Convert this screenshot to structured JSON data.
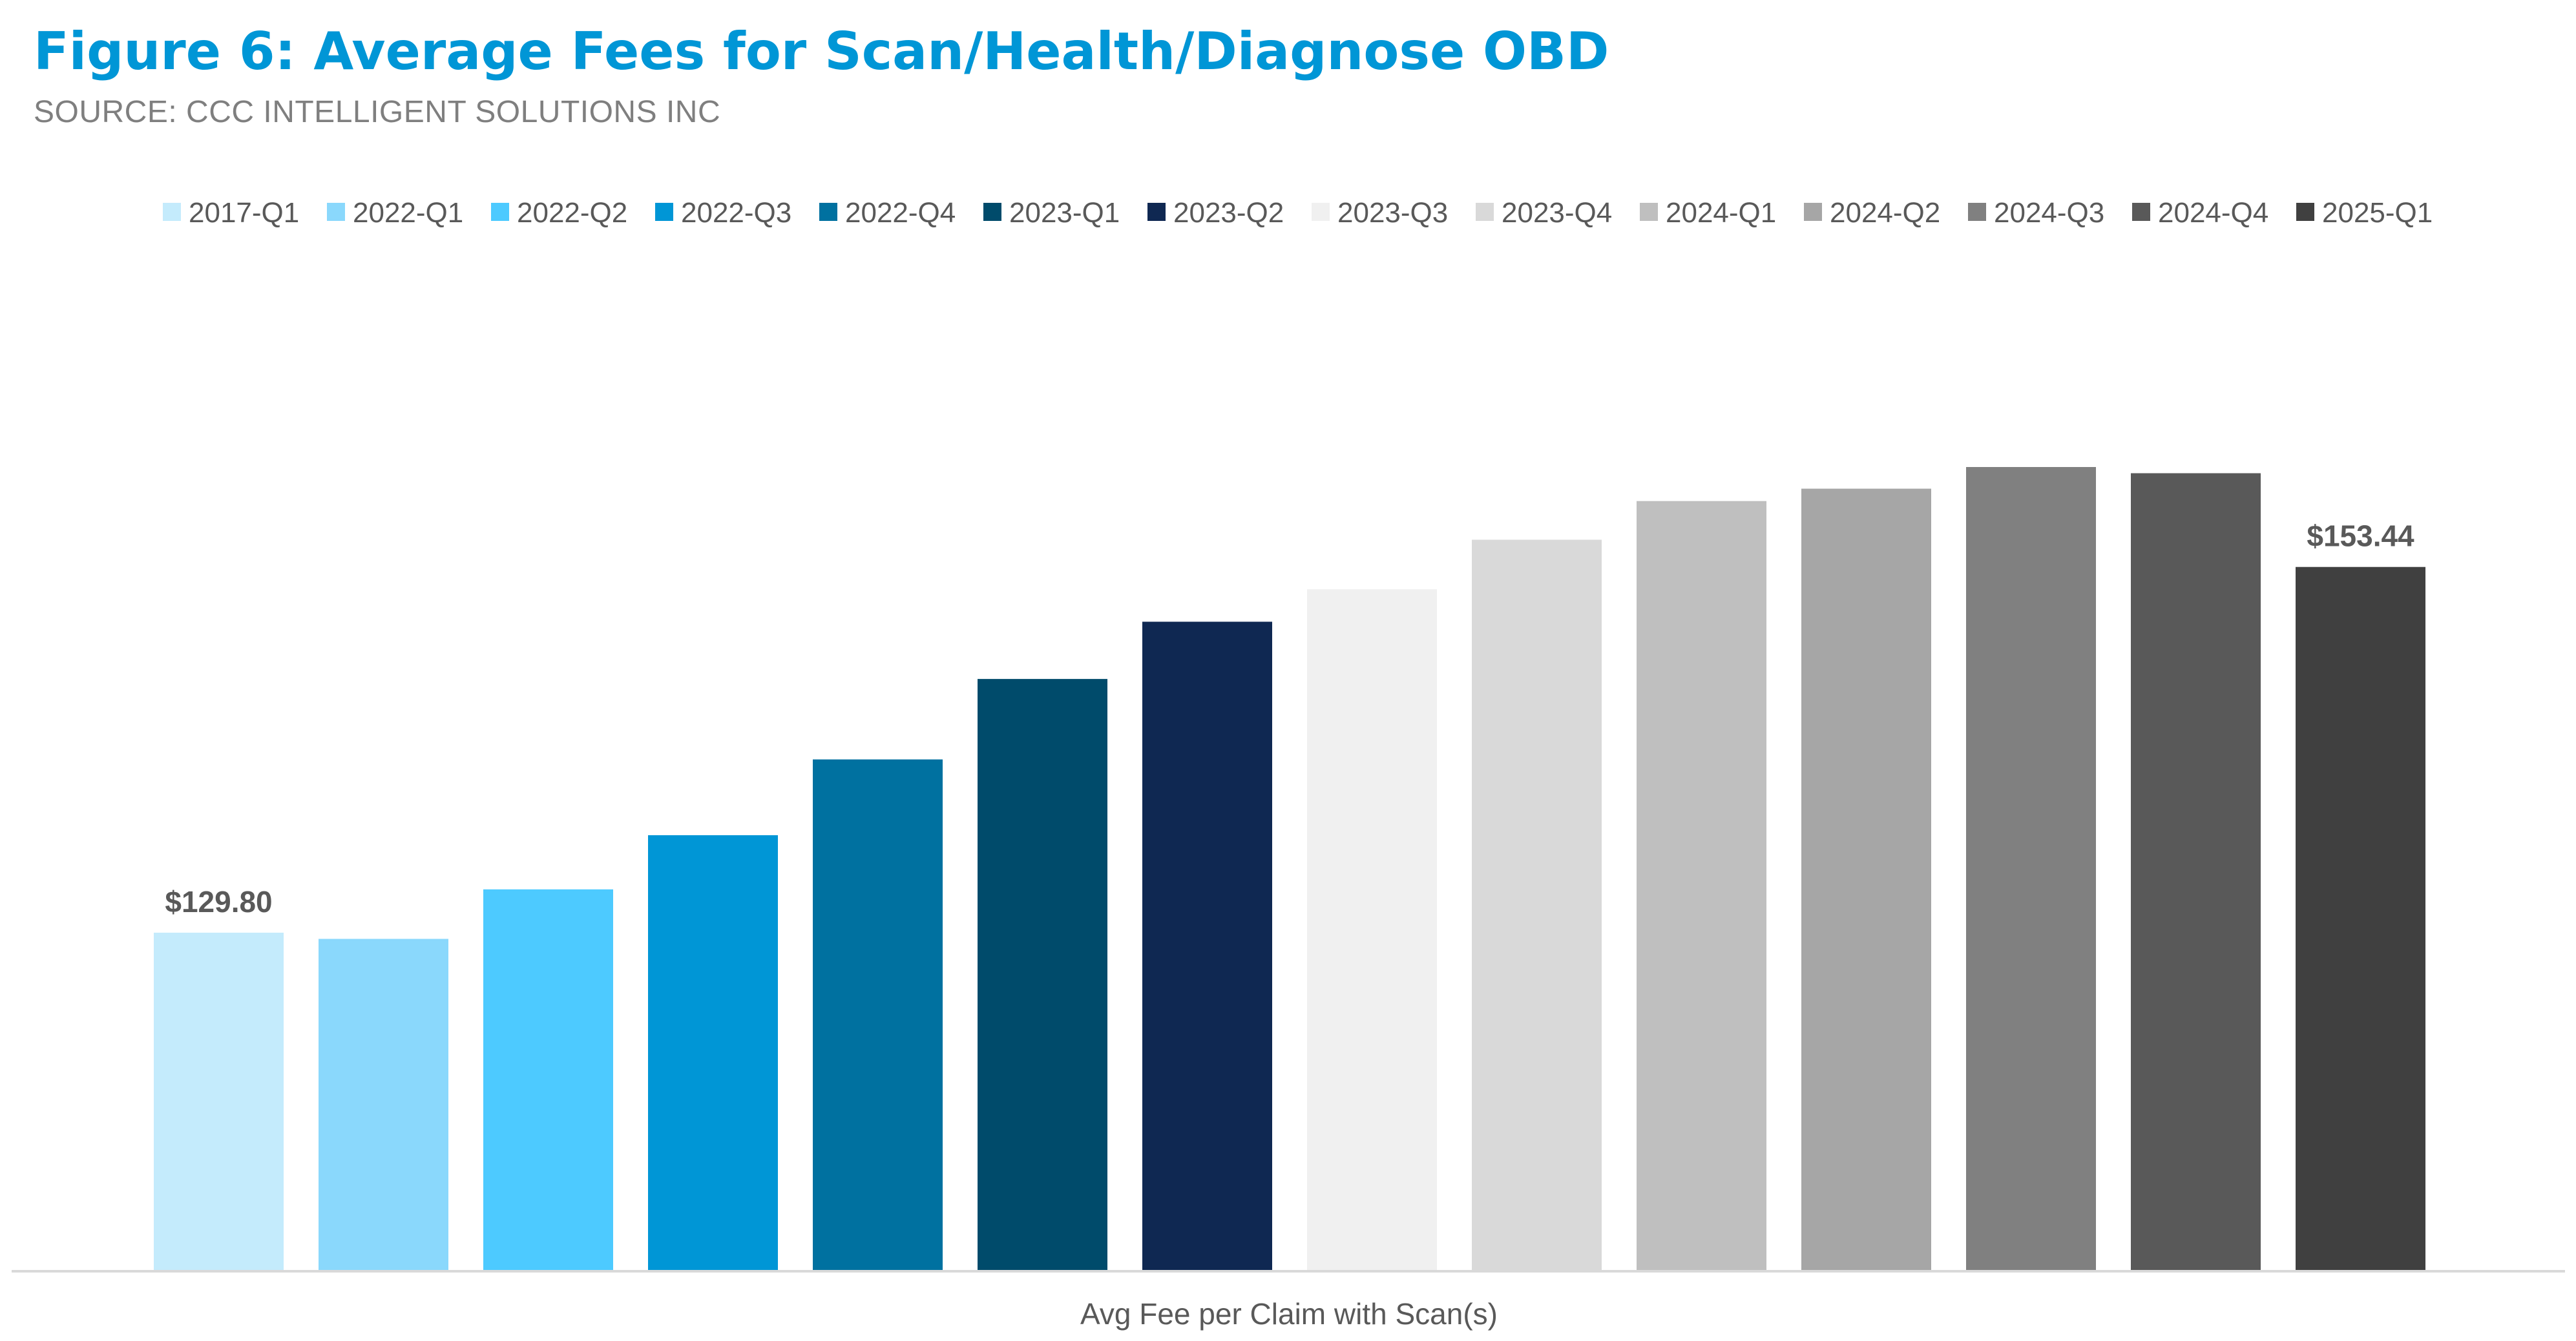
{
  "title": "Figure 6: Average Fees for Scan/Health/Diagnose OBD",
  "subtitle": "SOURCE: CCC INTELLIGENT SOLUTIONS INC",
  "chart_data": {
    "type": "bar",
    "title": "Figure 6: Average Fees for Scan/Health/Diagnose OBD",
    "subtitle": "SOURCE: CCC INTELLIGENT SOLUTIONS INC",
    "xlabel": "Avg Fee per Claim with Scan(s)",
    "ylabel": "",
    "categories": [
      "Avg Fee per Claim with Scan(s)"
    ],
    "series": [
      {
        "name": "2017-Q1",
        "value": 129.8,
        "color": "#c4ebfc"
      },
      {
        "name": "2022-Q1",
        "value": 129.4,
        "color": "#8ad8fc"
      },
      {
        "name": "2022-Q2",
        "value": 132.6,
        "color": "#4dcaff"
      },
      {
        "name": "2022-Q3",
        "value": 136.1,
        "color": "#0096d6"
      },
      {
        "name": "2022-Q4",
        "value": 141.0,
        "color": "#0071a0"
      },
      {
        "name": "2023-Q1",
        "value": 146.2,
        "color": "#004b6b"
      },
      {
        "name": "2023-Q2",
        "value": 149.9,
        "color": "#0f2852"
      },
      {
        "name": "2023-Q3",
        "value": 152.0,
        "color": "#f0f0f0"
      },
      {
        "name": "2023-Q4",
        "value": 155.2,
        "color": "#d9d9d9"
      },
      {
        "name": "2024-Q1",
        "value": 157.7,
        "color": "#bfbfbf"
      },
      {
        "name": "2024-Q2",
        "value": 158.5,
        "color": "#a6a6a6"
      },
      {
        "name": "2024-Q3",
        "value": 159.9,
        "color": "#808080"
      },
      {
        "name": "2024-Q4",
        "value": 159.5,
        "color": "#595959"
      },
      {
        "name": "2025-Q1",
        "value": 153.44,
        "color": "#404040"
      }
    ],
    "data_labels": [
      {
        "series": "2017-Q1",
        "text": "$129.80"
      },
      {
        "series": "2025-Q1",
        "text": "$153.44"
      }
    ],
    "grid": false,
    "legend": "top"
  }
}
